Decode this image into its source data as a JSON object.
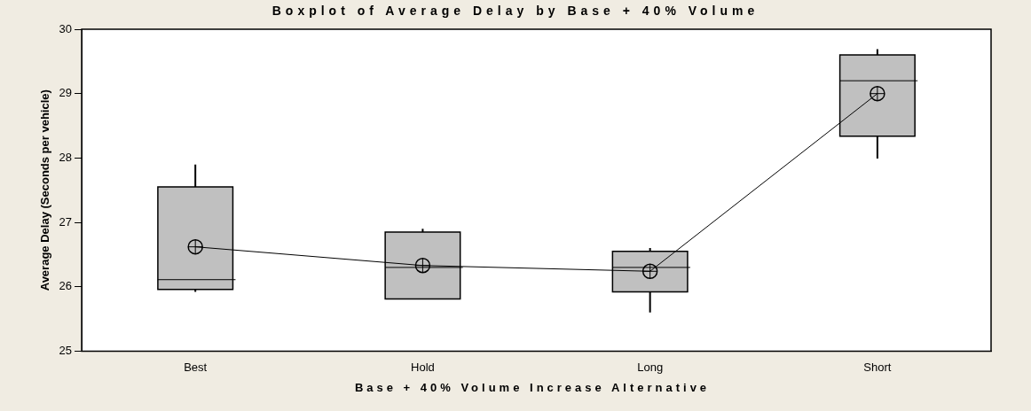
{
  "chart_data": {
    "type": "box",
    "title": "Boxplot of Average Delay by Base + 40% Volume",
    "xlabel": "Base + 40% Volume Increase Alternative",
    "ylabel": "Average Delay (Seconds per vehicle)",
    "categories": [
      "Best",
      "Hold",
      "Long",
      "Short"
    ],
    "color": "#c0c0c0",
    "boxes": [
      {
        "low": 25.92,
        "q1": 25.96,
        "median": 26.11,
        "q3": 27.55,
        "high": 27.9
      },
      {
        "low": 25.81,
        "q1": 25.81,
        "median": 26.3,
        "q3": 26.85,
        "high": 26.9
      },
      {
        "low": 25.6,
        "q1": 25.92,
        "median": 26.3,
        "q3": 26.55,
        "high": 26.6
      },
      {
        "low": 27.99,
        "q1": 28.34,
        "median": 29.2,
        "q3": 29.6,
        "high": 29.69
      }
    ],
    "series": [
      {
        "type": "line",
        "color": "#000000",
        "values": [
          26.62,
          26.33,
          26.24,
          29.0
        ]
      }
    ],
    "marker": "circle",
    "ylim": [
      25,
      30
    ],
    "yticks": [
      25,
      26,
      27,
      28,
      29,
      30
    ],
    "grid": false,
    "legend": false
  }
}
